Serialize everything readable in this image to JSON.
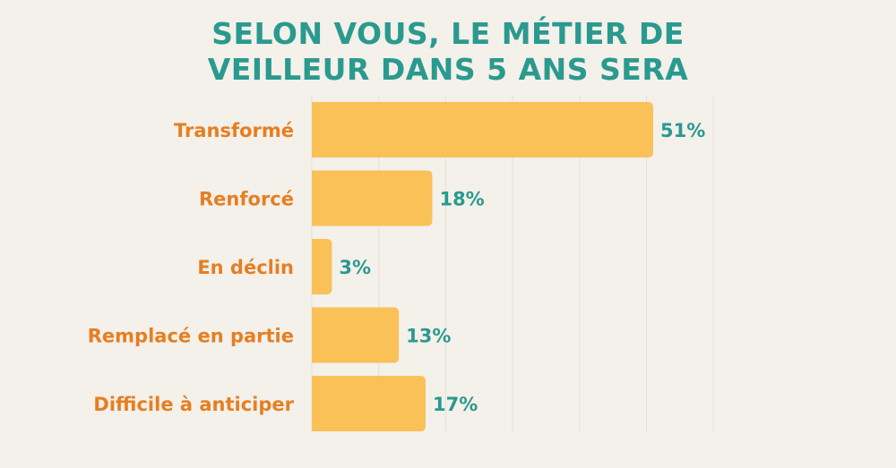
{
  "title_lines": [
    "SELON VOUS, LE MÉTIER DE",
    "VEILLEUR DANS 5 ANS SERA"
  ],
  "colors": {
    "background": "#f4f0ea",
    "bar": "#f9c157",
    "title": "#2a9a8f",
    "category_label": "#e57f22",
    "value_label": "#2a9a8f",
    "grid": "#e6e0d8"
  },
  "chart_data": {
    "type": "bar",
    "orientation": "horizontal",
    "title": "SELON VOUS, LE MÉTIER DE VEILLEUR DANS 5 ANS SERA",
    "categories": [
      "Transformé",
      "Renforcé",
      "En déclin",
      "Remplacé en partie",
      "Difficile à anticiper"
    ],
    "values": [
      51,
      18,
      3,
      13,
      17
    ],
    "value_labels": [
      "51%",
      "18%",
      "3%",
      "13%",
      "17%"
    ],
    "xlim": [
      0,
      60
    ],
    "grid": true,
    "legend": "none"
  }
}
